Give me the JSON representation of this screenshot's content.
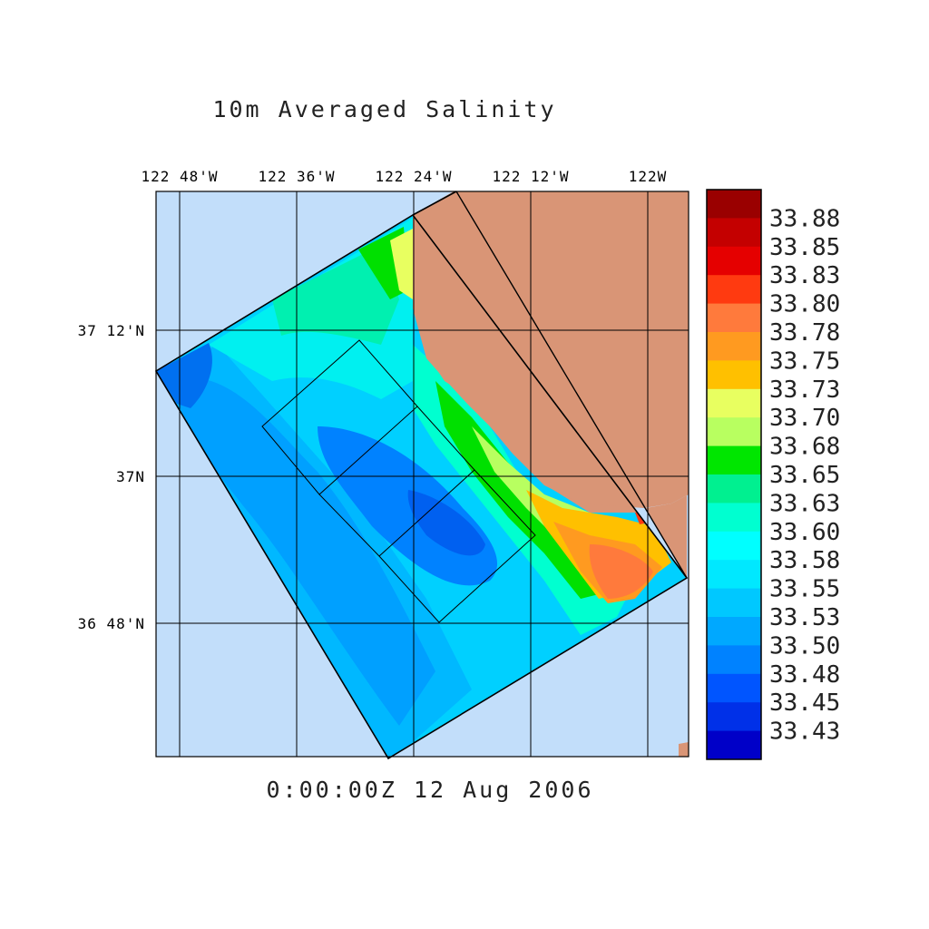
{
  "title": "10m Averaged Salinity",
  "timestamp": "0:00:00Z  12 Aug 2006",
  "map": {
    "lon_labels": [
      "122 48'W",
      "122 36'W",
      "122 24'W",
      "122 12'W",
      "122W"
    ],
    "lat_labels": [
      "37 12'N",
      "37N",
      "36 48'N"
    ],
    "colors": {
      "ocean_outside": "#c2defa",
      "land": "#d99576",
      "grid": "#000000"
    }
  },
  "colorbar": {
    "labels": [
      "33.88",
      "33.85",
      "33.83",
      "33.80",
      "33.78",
      "33.75",
      "33.73",
      "33.70",
      "33.68",
      "33.65",
      "33.63",
      "33.60",
      "33.58",
      "33.55",
      "33.53",
      "33.50",
      "33.48",
      "33.45",
      "33.43"
    ],
    "colors": [
      "#9a0000",
      "#c40000",
      "#e50000",
      "#ff3a10",
      "#ff7a3c",
      "#ff9a20",
      "#ffc000",
      "#e8ff60",
      "#b8ff60",
      "#00e600",
      "#00f090",
      "#00ffd0",
      "#00ffff",
      "#00e8ff",
      "#00c8ff",
      "#00a8ff",
      "#0082ff",
      "#0055ff",
      "#0030e8",
      "#0000c8"
    ]
  }
}
